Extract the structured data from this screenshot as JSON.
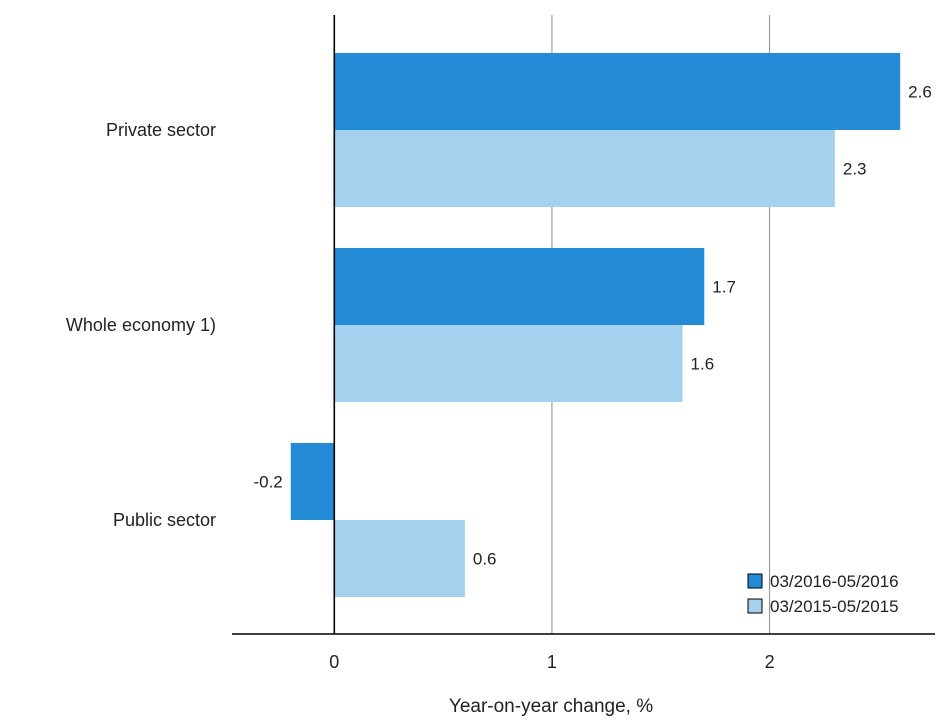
{
  "chart_data": {
    "type": "bar",
    "orientation": "horizontal",
    "categories": [
      "Private sector",
      "Whole economy 1)",
      "Public sector"
    ],
    "series": [
      {
        "name": "03/2016-05/2016",
        "values": [
          2.6,
          1.7,
          -0.2
        ],
        "color": "#238bd6"
      },
      {
        "name": "03/2015-05/2015",
        "values": [
          2.3,
          1.6,
          0.6
        ],
        "color": "#a6d1ee"
      }
    ],
    "data_labels": [
      [
        "2.6",
        "1.7",
        "-0.2"
      ],
      [
        "2.3",
        "1.6",
        "0.6"
      ]
    ],
    "x_ticks": [
      0,
      1,
      2
    ],
    "x_tick_labels": [
      "0",
      "1",
      "2"
    ],
    "xlim": [
      -0.47,
      2.76
    ],
    "xlabel": "Year-on-year change, %",
    "ylabel": "",
    "title": "",
    "grid": "vertical",
    "legend_position": "bottom-right"
  }
}
